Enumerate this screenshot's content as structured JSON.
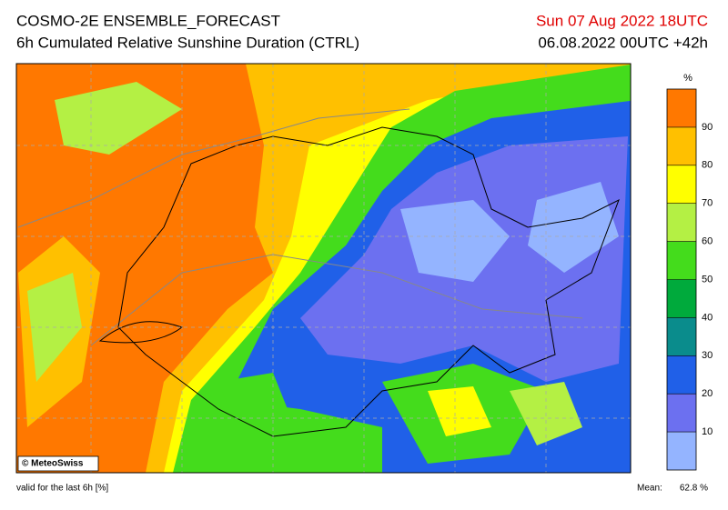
{
  "header": {
    "title": "COSMO-2E ENSEMBLE_FORECAST",
    "subtitle": "6h Cumulated Relative Sunshine Duration (CTRL)",
    "valid_time": "Sun 07 Aug 2022 18UTC",
    "run": "06.08.2022 00UTC +42h"
  },
  "map": {
    "credit": "© MeteoSwiss"
  },
  "colorbar": {
    "unit": "%",
    "ticks": [
      10,
      20,
      30,
      40,
      50,
      60,
      70,
      80,
      90
    ],
    "colors": [
      "#94b4ff",
      "#6c70f0",
      "#2060e8",
      "#0a8c8c",
      "#00aa3c",
      "#44dc1c",
      "#b4f044",
      "#ffff00",
      "#ffc000",
      "#ff7800"
    ]
  },
  "footer": {
    "validity": "valid for the last 6h [%]",
    "mean_label": "Mean:",
    "mean_value": "62.8 %"
  }
}
